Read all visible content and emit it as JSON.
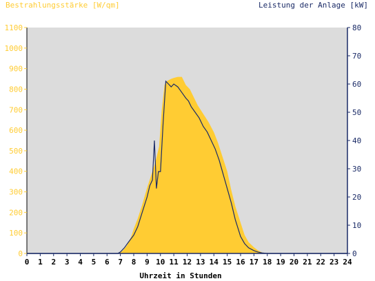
{
  "chart_data": {
    "type": "area",
    "title_left": "Bestrahlungsstärke [W/qm]",
    "title_right": "Leistung der Anlage [kW]",
    "xlabel": "Uhrzeit in Stunden",
    "xlim": [
      0,
      24
    ],
    "x_ticks": [
      "0",
      "1",
      "2",
      "3",
      "4",
      "5",
      "6",
      "7",
      "8",
      "9",
      "10",
      "11",
      "12",
      "13",
      "14",
      "15",
      "16",
      "17",
      "18",
      "19",
      "20",
      "21",
      "22",
      "23",
      "24"
    ],
    "y_left_lim": [
      0,
      1100
    ],
    "y_left_ticks": [
      "0",
      "100",
      "200",
      "300",
      "400",
      "500",
      "600",
      "700",
      "800",
      "900",
      "1000",
      "1100"
    ],
    "y_right_lim": [
      0,
      80
    ],
    "y_right_ticks": [
      "0",
      "10",
      "20",
      "30",
      "40",
      "50",
      "60",
      "70",
      "80"
    ],
    "grid": false,
    "colors": {
      "irradiance_fill": "#ffcc33",
      "power_line": "#1a2a66",
      "plot_background": "#dcdcdc",
      "left_axis_text": "#ffcc33",
      "right_axis_text": "#1a2a66",
      "x_axis_text": "#000000"
    },
    "series": [
      {
        "axis": "left",
        "x": [
          0,
          6.8,
          7.0,
          7.2,
          7.5,
          7.8,
          8.0,
          8.3,
          8.6,
          9.0,
          9.3,
          9.6,
          9.9,
          10.1,
          10.3,
          10.5,
          10.8,
          11.0,
          11.3,
          11.6,
          11.9,
          12.2,
          12.5,
          12.8,
          13.0,
          13.3,
          13.6,
          14.0,
          14.3,
          14.6,
          15.0,
          15.3,
          15.6,
          16.0,
          16.3,
          16.6,
          17.0,
          17.3,
          17.6,
          18.0,
          24
        ],
        "y": [
          0,
          0,
          5,
          15,
          40,
          80,
          120,
          170,
          230,
          320,
          380,
          440,
          520,
          700,
          820,
          840,
          850,
          855,
          860,
          860,
          820,
          800,
          760,
          720,
          700,
          670,
          640,
          590,
          540,
          480,
          400,
          310,
          230,
          150,
          90,
          55,
          30,
          15,
          5,
          0,
          0
        ]
      },
      {
        "axis": "right",
        "x": [
          0,
          6.8,
          7.0,
          7.3,
          7.6,
          8.0,
          8.3,
          8.6,
          9.0,
          9.2,
          9.4,
          9.55,
          9.7,
          9.85,
          10.0,
          10.2,
          10.4,
          10.6,
          10.8,
          11.0,
          11.3,
          11.6,
          11.9,
          12.1,
          12.3,
          12.6,
          12.9,
          13.2,
          13.5,
          13.8,
          14.1,
          14.4,
          14.7,
          15.0,
          15.3,
          15.6,
          16.0,
          16.3,
          16.6,
          17.0,
          17.3,
          17.6,
          18.0,
          24
        ],
        "y": [
          0,
          0,
          0.5,
          2,
          4,
          6.5,
          9.5,
          14,
          20,
          24,
          26,
          40,
          23,
          29,
          29,
          46,
          61,
          60,
          59,
          60,
          59,
          57,
          55,
          54,
          52,
          50,
          48,
          45,
          43,
          40,
          37,
          33,
          28,
          23,
          18,
          12,
          6,
          3.5,
          2,
          1,
          0.5,
          0.2,
          0,
          0
        ]
      }
    ]
  }
}
